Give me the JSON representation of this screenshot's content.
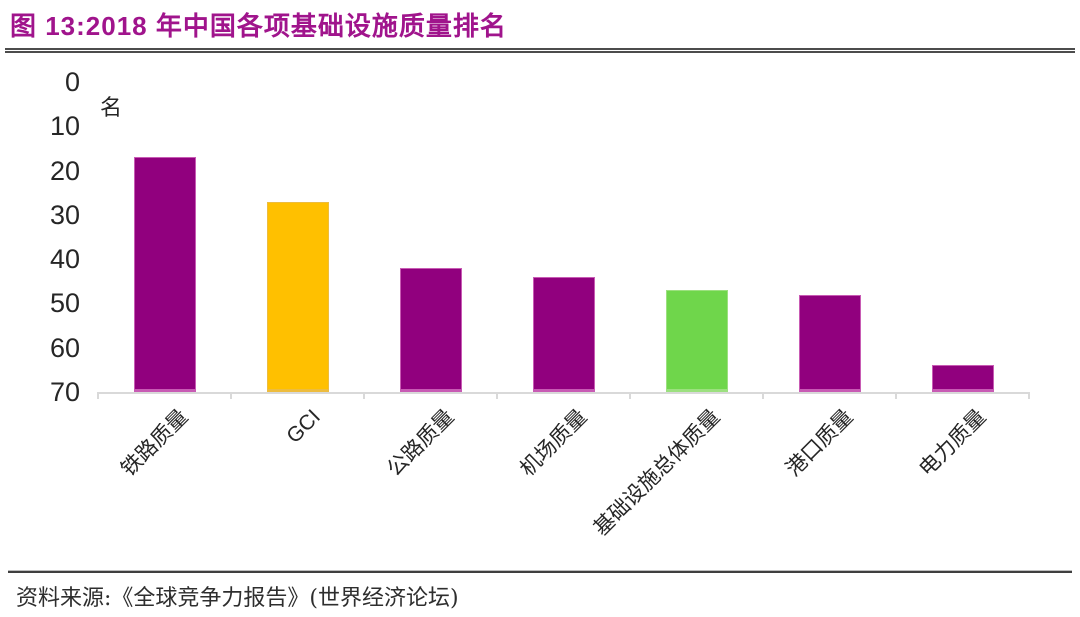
{
  "header": {
    "title": "图 13:2018 年中国各项基础设施质量排名"
  },
  "chart_data": {
    "type": "bar",
    "title": "2018 年中国各项基础设施质量排名",
    "unit_label": "名",
    "categories": [
      "铁路质量",
      "GCI",
      "公路质量",
      "机场质量",
      "基础设施总体质量",
      "港口质量",
      "电力质量"
    ],
    "values": [
      17,
      27,
      42,
      44,
      47,
      48,
      64
    ],
    "bar_colors": [
      "#91007E",
      "#FFC000",
      "#91007E",
      "#91007E",
      "#6FD64B",
      "#91007E",
      "#91007E"
    ],
    "bar_border_colors": [
      "#C85BB4",
      "#EDBC3E",
      "#C85BB4",
      "#C85BB4",
      "#9CE07F",
      "#C85BB4",
      "#C85BB4"
    ],
    "y_axis": {
      "min": 0,
      "max": 70,
      "step": 10,
      "inverted": true,
      "tick_labels": [
        "0",
        "10",
        "20",
        "30",
        "40",
        "50",
        "60",
        "70"
      ]
    },
    "grid": false,
    "legend": null
  },
  "footer": {
    "source": "资料来源:《全球竞争力报告》(世界经济论坛)"
  },
  "colors": {
    "title_text": "#A0148C",
    "divider": "#4C4C4C",
    "axis_line": "#D9D9D9",
    "tick_text": "#262626",
    "category_text": "#262626",
    "source_text": "#2E2E2E"
  }
}
